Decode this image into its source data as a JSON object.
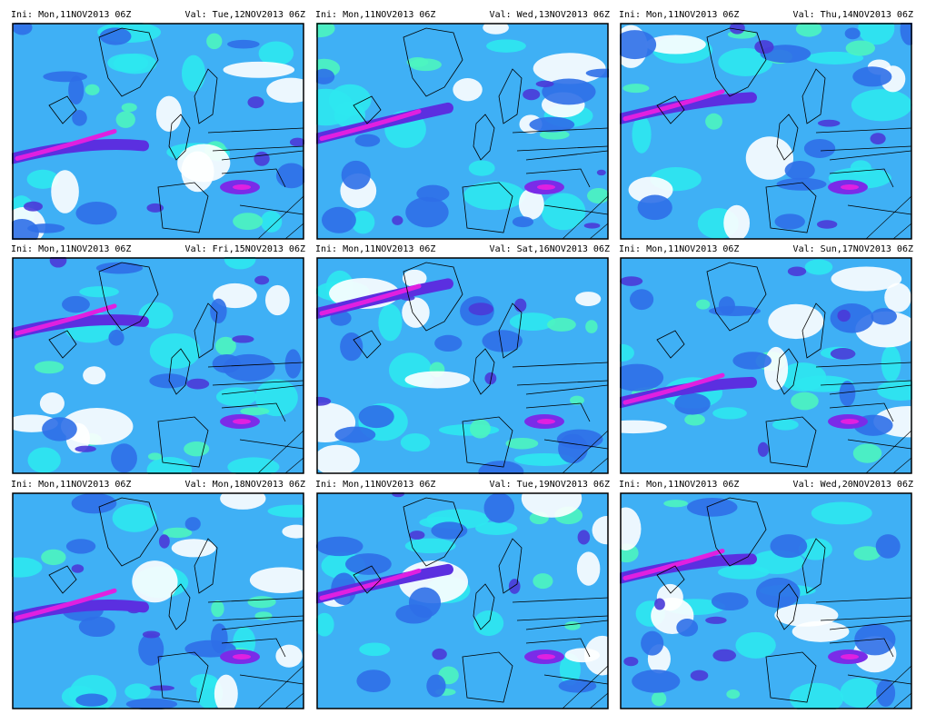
{
  "panels": [
    {
      "ini": "Ini: Mon,11NOV2013 06Z",
      "val": "Val: Tue,12NOV2013 06Z"
    },
    {
      "ini": "Ini: Mon,11NOV2013 06Z",
      "val": "Val: Wed,13NOV2013 06Z"
    },
    {
      "ini": "Ini: Mon,11NOV2013 06Z",
      "val": "Val: Thu,14NOV2013 06Z"
    },
    {
      "ini": "Ini: Mon,11NOV2013 06Z",
      "val": "Val: Fri,15NOV2013 06Z"
    },
    {
      "ini": "Ini: Mon,11NOV2013 06Z",
      "val": "Val: Sat,16NOV2013 06Z"
    },
    {
      "ini": "Ini: Mon,11NOV2013 06Z",
      "val": "Val: Sun,17NOV2013 06Z"
    },
    {
      "ini": "Ini: Mon,11NOV2013 06Z",
      "val": "Val: Mon,18NOV2013 06Z"
    },
    {
      "ini": "Ini: Mon,11NOV2013 06Z",
      "val": "Val: Tue,19NOV2013 06Z"
    },
    {
      "ini": "Ini: Mon,11NOV2013 06Z",
      "val": "Val: Wed,20NOV2013 06Z"
    }
  ]
}
